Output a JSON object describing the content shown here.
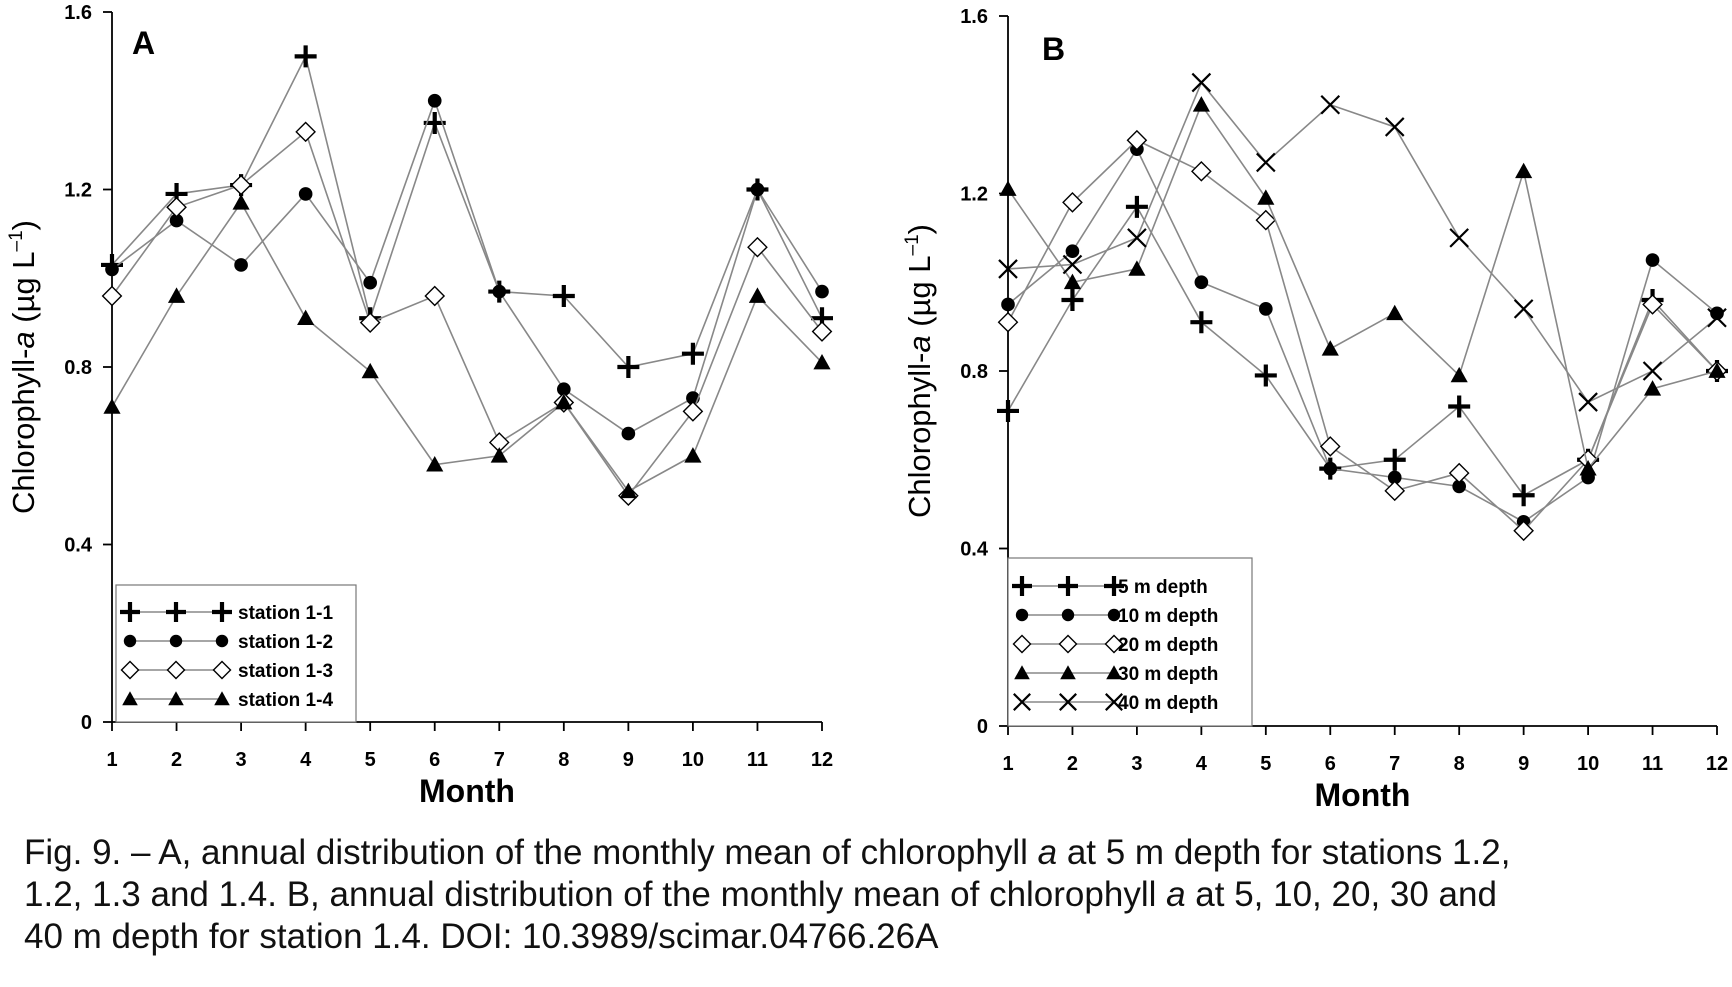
{
  "chart_data": [
    {
      "type": "line",
      "panel_label": "A",
      "xlabel": "Month",
      "ylabel_main": "Chlorophyll-",
      "ylabel_italic": "a",
      "ylabel_units": "(µg L",
      "ylabel_sup": "–1",
      "ylabel_close": ")",
      "ylim": [
        0,
        1.6
      ],
      "yticks": [
        "0",
        "0.4",
        "0.8",
        "1.2",
        "1.6"
      ],
      "yticks_values": [
        0,
        0.4,
        0.8,
        1.2,
        1.6
      ],
      "x": [
        1,
        2,
        3,
        4,
        5,
        6,
        7,
        8,
        9,
        10,
        11,
        12
      ],
      "legend_position": "bottom-left",
      "series": [
        {
          "name": "station 1-1",
          "marker": "plus",
          "values": [
            1.03,
            1.19,
            1.21,
            1.5,
            0.91,
            1.35,
            0.97,
            0.96,
            0.8,
            0.83,
            1.2,
            0.91
          ]
        },
        {
          "name": "station 1-2",
          "marker": "circle",
          "values": [
            1.02,
            1.13,
            1.03,
            1.19,
            0.99,
            1.4,
            0.97,
            0.75,
            0.65,
            0.73,
            1.2,
            0.97
          ]
        },
        {
          "name": "station 1-3",
          "marker": "diamond",
          "values": [
            0.96,
            1.16,
            1.21,
            1.33,
            0.9,
            0.96,
            0.63,
            0.72,
            0.51,
            0.7,
            1.07,
            0.88
          ]
        },
        {
          "name": "station 1-4",
          "marker": "triangle",
          "values": [
            0.71,
            0.96,
            1.17,
            0.91,
            0.79,
            0.58,
            0.6,
            0.72,
            0.52,
            0.6,
            0.96,
            0.81
          ]
        }
      ]
    },
    {
      "type": "line",
      "panel_label": "B",
      "xlabel": "Month",
      "ylabel_main": "Chlorophyll-",
      "ylabel_italic": "a",
      "ylabel_units": "(µg L",
      "ylabel_sup": "–1",
      "ylabel_close": ")",
      "ylim": [
        0,
        1.6
      ],
      "yticks": [
        "0",
        "0.4",
        "0.8",
        "1.2",
        "1.6"
      ],
      "yticks_values": [
        0,
        0.4,
        0.8,
        1.2,
        1.6
      ],
      "x": [
        1,
        2,
        3,
        4,
        5,
        6,
        7,
        8,
        9,
        10,
        11,
        12
      ],
      "legend_position": "bottom-left",
      "series": [
        {
          "name": "5 m depth",
          "marker": "plus",
          "values": [
            0.71,
            0.96,
            1.17,
            0.91,
            0.79,
            0.58,
            0.6,
            0.72,
            0.52,
            0.6,
            0.96,
            0.8
          ]
        },
        {
          "name": "10 m depth",
          "marker": "circle",
          "values": [
            0.95,
            1.07,
            1.3,
            1.0,
            0.94,
            0.58,
            0.56,
            0.54,
            0.46,
            0.56,
            1.05,
            0.93
          ]
        },
        {
          "name": "20 m depth",
          "marker": "diamond",
          "values": [
            0.91,
            1.18,
            1.32,
            1.25,
            1.14,
            0.63,
            0.53,
            0.57,
            0.44,
            0.6,
            0.95,
            0.8
          ]
        },
        {
          "name": "30 m depth",
          "marker": "triangle",
          "values": [
            1.21,
            1.0,
            1.03,
            1.4,
            1.19,
            0.85,
            0.93,
            0.79,
            1.25,
            0.58,
            0.76,
            0.8
          ]
        },
        {
          "name": "40 m depth",
          "marker": "cross",
          "values": [
            1.03,
            1.04,
            1.1,
            1.45,
            1.27,
            1.4,
            1.35,
            1.1,
            0.94,
            0.73,
            0.8,
            0.92
          ]
        }
      ]
    }
  ],
  "caption": {
    "line1_a": "Fig. 9. – A, annual distribution of the monthly mean of chlorophyll ",
    "line1_i": "a",
    "line1_b": " at 5 m depth for stations 1.2,",
    "line2_a": "1.2, 1.3 and 1.4. B, annual distribution of the monthly mean of chlorophyll ",
    "line2_i": "a",
    "line2_b": " at 5, 10, 20, 30 and",
    "line3": "40 m depth for station 1.4. DOI: 10.3989/scimar.04766.26A"
  },
  "colors": {
    "line": "#888888",
    "marker": "#000000",
    "axis": "#000000"
  }
}
